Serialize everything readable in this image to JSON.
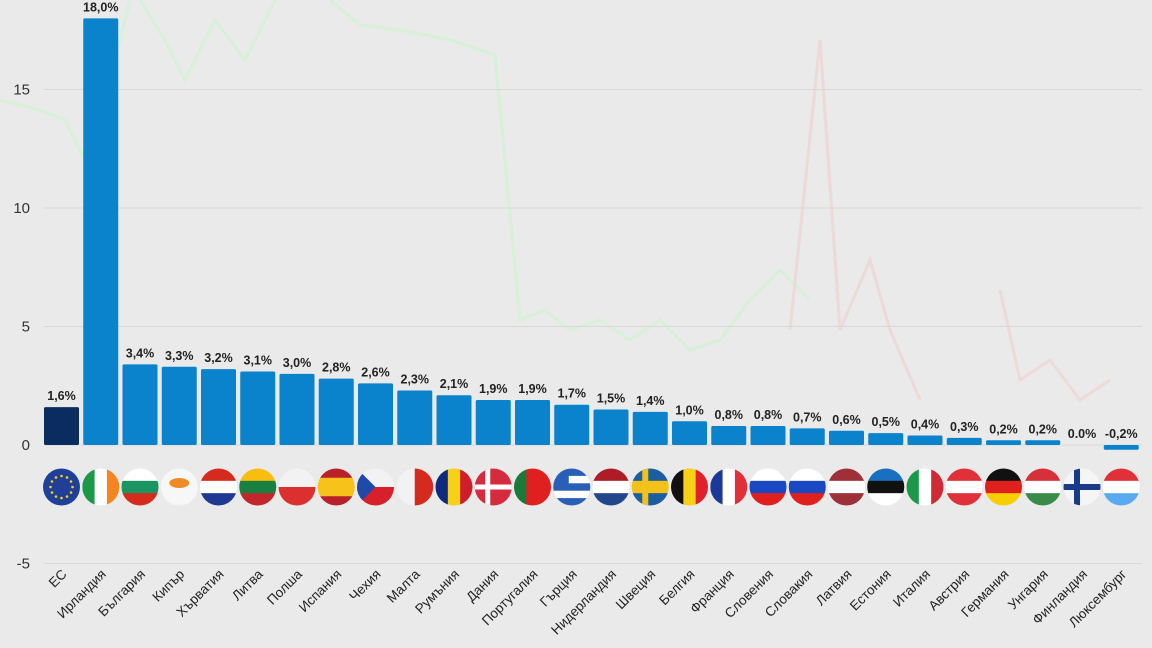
{
  "chart_data": {
    "type": "bar",
    "title": "",
    "xlabel": "",
    "ylabel": "",
    "ylim": [
      -5.5,
      18.5
    ],
    "yticks": [
      -5,
      0,
      5,
      10,
      15
    ],
    "ytick_labels": [
      "-5",
      "0",
      "5",
      "10",
      "15"
    ],
    "grid": true,
    "colors": {
      "eu_bar": "#0b2c5e",
      "country_bar": "#0a82cc"
    },
    "categories": [
      "ЕС",
      "Ирландия",
      "България",
      "Кипър",
      "Хърватия",
      "Литва",
      "Полша",
      "Испания",
      "Чехия",
      "Малта",
      "Румъния",
      "Дания",
      "Португалия",
      "Гърция",
      "Нидерландия",
      "Швеция",
      "Белгия",
      "Франция",
      "Словения",
      "Словакия",
      "Латвия",
      "Естония",
      "Италия",
      "Австрия",
      "Германия",
      "Унгария",
      "Финландия",
      "Люксембург"
    ],
    "values": [
      1.6,
      18.0,
      3.4,
      3.3,
      3.2,
      3.1,
      3.0,
      2.8,
      2.6,
      2.3,
      2.1,
      1.9,
      1.9,
      1.7,
      1.5,
      1.4,
      1.0,
      0.8,
      0.8,
      0.7,
      0.6,
      0.5,
      0.4,
      0.3,
      0.2,
      0.2,
      0.0,
      -0.2
    ],
    "value_labels": [
      "1,6%",
      "18,0%",
      "3,4%",
      "3,3%",
      "3,2%",
      "3,1%",
      "3,0%",
      "2,8%",
      "2,6%",
      "2,3%",
      "2,1%",
      "1,9%",
      "1,9%",
      "1,7%",
      "1,5%",
      "1,4%",
      "1,0%",
      "0,8%",
      "0,8%",
      "0,7%",
      "0,6%",
      "0,5%",
      "0,4%",
      "0,3%",
      "0,2%",
      "0,2%",
      "0.0%",
      "-0,2%"
    ],
    "flags": [
      {
        "dir": "h",
        "colors": [
          "#1f3f99"
        ]
      },
      {
        "dir": "v",
        "colors": [
          "#1a9a48",
          "#ffffff",
          "#f7851f"
        ]
      },
      {
        "dir": "h",
        "colors": [
          "#ffffff",
          "#1a9460",
          "#d52b1e"
        ]
      },
      {
        "dir": "h",
        "colors": [
          "#f7f7f7"
        ]
      },
      {
        "dir": "h",
        "colors": [
          "#d52b1e",
          "#ffffff",
          "#1e3a93"
        ]
      },
      {
        "dir": "h",
        "colors": [
          "#f9bd0f",
          "#1a8042",
          "#c1272d"
        ]
      },
      {
        "dir": "h",
        "colors": [
          "#f2f2f2",
          "#dc3030"
        ]
      },
      {
        "dir": "h",
        "colors": [
          "#b8202a",
          "#f7c21a",
          "#f7c21a",
          "#b8202a"
        ]
      },
      {
        "dir": "h",
        "colors": [
          "#f2f2f2",
          "#d7202a"
        ]
      },
      {
        "dir": "v",
        "colors": [
          "#f2f2f2",
          "#d52b1e"
        ]
      },
      {
        "dir": "v",
        "colors": [
          "#0c2a80",
          "#f7d117",
          "#cf1d2b"
        ]
      },
      {
        "dir": "h",
        "colors": [
          "#d52b3e"
        ]
      },
      {
        "dir": "v",
        "colors": [
          "#1a7a3a",
          "#e0201f",
          "#e0201f"
        ]
      },
      {
        "dir": "h",
        "colors": [
          "#2a5fb8",
          "#ffffff",
          "#2a5fb8",
          "#ffffff",
          "#2a5fb8"
        ]
      },
      {
        "dir": "h",
        "colors": [
          "#ae1c28",
          "#ffffff",
          "#21468b"
        ]
      },
      {
        "dir": "h",
        "colors": [
          "#1d5f9e",
          "#f2c21a",
          "#1d5f9e"
        ]
      },
      {
        "dir": "v",
        "colors": [
          "#111111",
          "#f7d117",
          "#e0202a"
        ]
      },
      {
        "dir": "v",
        "colors": [
          "#1a3a9a",
          "#ffffff",
          "#e0303a"
        ]
      },
      {
        "dir": "h",
        "colors": [
          "#ffffff",
          "#1a48c0",
          "#e0201f"
        ]
      },
      {
        "dir": "h",
        "colors": [
          "#ffffff",
          "#1a48c0",
          "#e0201f"
        ]
      },
      {
        "dir": "h",
        "colors": [
          "#9e3039",
          "#ffffff",
          "#9e3039"
        ]
      },
      {
        "dir": "h",
        "colors": [
          "#1a6fc0",
          "#111111",
          "#ffffff"
        ]
      },
      {
        "dir": "v",
        "colors": [
          "#1a9a48",
          "#ffffff",
          "#ce2b37"
        ]
      },
      {
        "dir": "h",
        "colors": [
          "#e0303a",
          "#ffffff",
          "#e0303a"
        ]
      },
      {
        "dir": "h",
        "colors": [
          "#111111",
          "#e0201f",
          "#f7ce00"
        ]
      },
      {
        "dir": "h",
        "colors": [
          "#d6303a",
          "#ffffff",
          "#3a8a4a"
        ]
      },
      {
        "dir": "h",
        "colors": [
          "#f5f5f5"
        ]
      },
      {
        "dir": "h",
        "colors": [
          "#e0303a",
          "#ffffff",
          "#5aaaf0"
        ]
      }
    ]
  }
}
